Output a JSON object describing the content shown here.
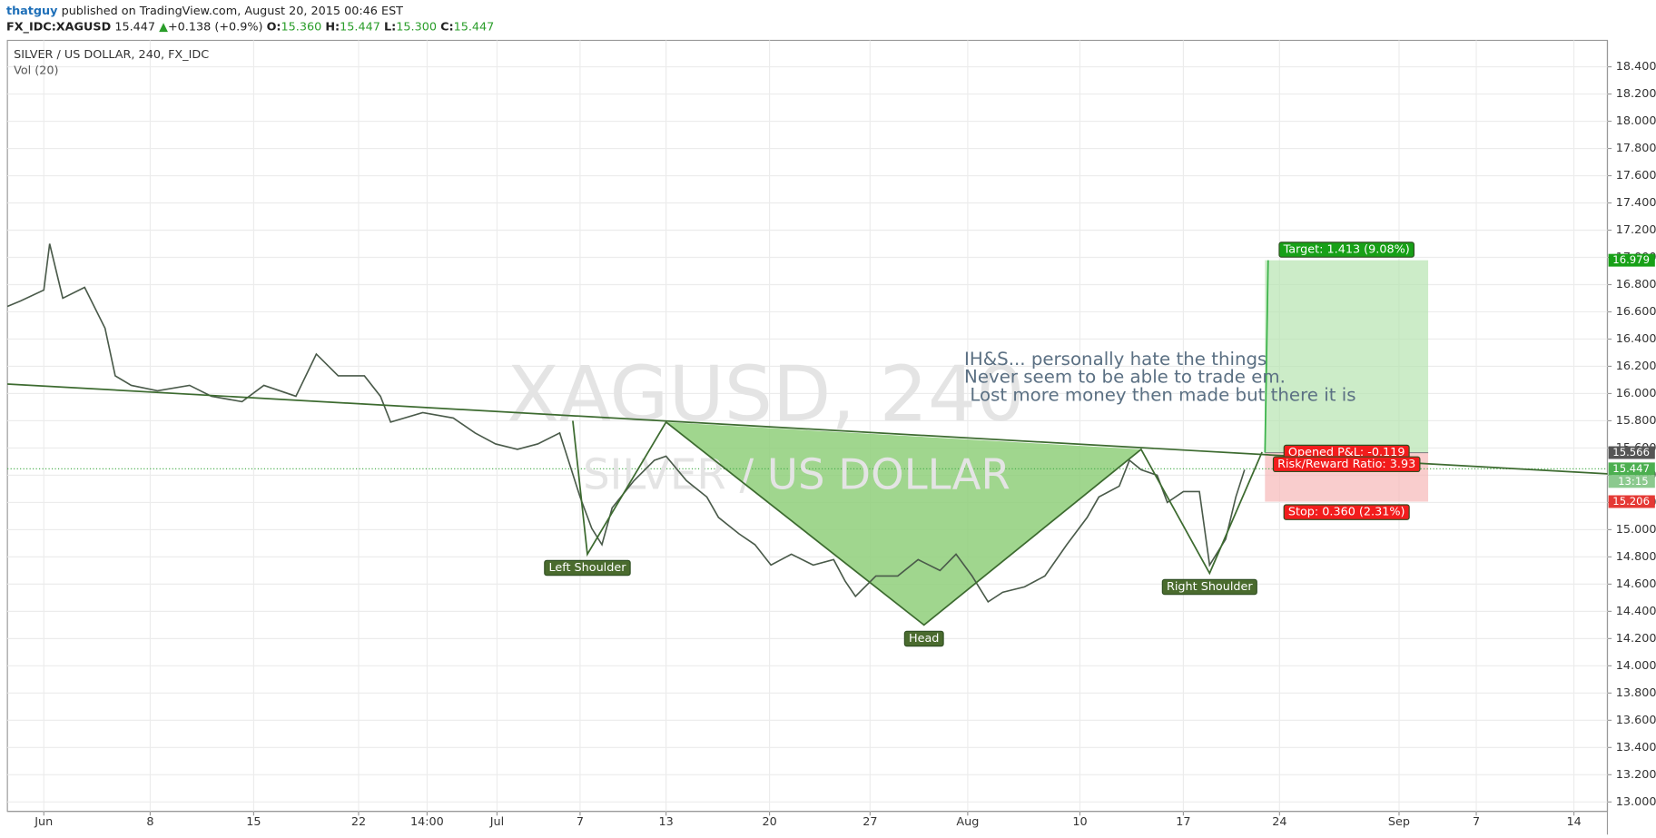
{
  "header": {
    "user": "thatguy",
    "published": "published on TradingView.com, August 20, 2015 00:46 EST",
    "symbol": "FX_IDC:XAGUSD",
    "close": 15.447,
    "change": "+0.138 (+0.9%)",
    "o_label": "O:",
    "open": "15.360",
    "h_label": "H:",
    "high": "15.447",
    "l_label": "L:",
    "low": "15.300",
    "c_label": "C:",
    "c_value": "15.447"
  },
  "chart_data": {
    "type": "line",
    "title": "SILVER / US DOLLAR, 240, FX_IDC",
    "subtitle": "Vol (20)",
    "watermark": [
      "XAGUSD, 240",
      "SILVER / US DOLLAR"
    ],
    "xlim": [
      -2.5,
      107.3
    ],
    "ylim": [
      12.931,
      18.594
    ],
    "xticks": [
      {
        "value": 0,
        "label": "Jun"
      },
      {
        "value": 7.3,
        "label": "8"
      },
      {
        "value": 14.4,
        "label": "15"
      },
      {
        "value": 21.6,
        "label": "22"
      },
      {
        "value": 26.3,
        "label": "14:00"
      },
      {
        "value": 31.1,
        "label": "Jul"
      },
      {
        "value": 36.8,
        "label": "7"
      },
      {
        "value": 42.7,
        "label": "13"
      },
      {
        "value": 49.8,
        "label": "20"
      },
      {
        "value": 56.7,
        "label": "27"
      },
      {
        "value": 63.4,
        "label": "Aug"
      },
      {
        "value": 71.1,
        "label": "10"
      },
      {
        "value": 78.2,
        "label": "17"
      },
      {
        "value": 84.8,
        "label": "24"
      },
      {
        "value": 93.0,
        "label": "Sep"
      },
      {
        "value": 98.3,
        "label": "7"
      },
      {
        "value": 105,
        "label": "14"
      }
    ],
    "yticks": [
      {
        "value": 13.0,
        "label": "13.000"
      },
      {
        "value": 13.2,
        "label": "13.200"
      },
      {
        "value": 13.4,
        "label": "13.400"
      },
      {
        "value": 13.6,
        "label": "13.600"
      },
      {
        "value": 13.8,
        "label": "13.800"
      },
      {
        "value": 14.0,
        "label": "14.000"
      },
      {
        "value": 14.2,
        "label": "14.200"
      },
      {
        "value": 14.4,
        "label": "14.400"
      },
      {
        "value": 14.6,
        "label": "14.600"
      },
      {
        "value": 14.8,
        "label": "14.800"
      },
      {
        "value": 15.0,
        "label": "15.000"
      },
      {
        "value": 15.2,
        "label": "15.200"
      },
      {
        "value": 15.4,
        "label": "15.400"
      },
      {
        "value": 15.6,
        "label": "15.600"
      },
      {
        "value": 15.8,
        "label": "15.800"
      },
      {
        "value": 16.0,
        "label": "16.000"
      },
      {
        "value": 16.2,
        "label": "16.200"
      },
      {
        "value": 16.4,
        "label": "16.400"
      },
      {
        "value": 16.6,
        "label": "16.600"
      },
      {
        "value": 16.8,
        "label": "16.800"
      },
      {
        "value": 17.0,
        "label": "17.000"
      },
      {
        "value": 17.2,
        "label": "17.200"
      },
      {
        "value": 17.4,
        "label": "17.400"
      },
      {
        "value": 17.6,
        "label": "17.600"
      },
      {
        "value": 17.8,
        "label": "17.800"
      },
      {
        "value": 18.0,
        "label": "18.000"
      },
      {
        "value": 18.2,
        "label": "18.200"
      },
      {
        "value": 18.4,
        "label": "18.400"
      }
    ],
    "grid": true,
    "x": [
      -2.5,
      -1.6,
      0,
      0.4,
      1.3,
      2.8,
      4.2,
      4.9,
      6.0,
      7.8,
      10.0,
      11.5,
      13.6,
      15.1,
      17.3,
      18.7,
      20.2,
      22.0,
      23.1,
      23.8,
      26.0,
      28.1,
      29.6,
      31.0,
      32.5,
      33.9,
      35.4,
      36.8,
      37.6,
      38.3,
      39.0,
      40.5,
      41.9,
      42.7,
      44.1,
      45.5,
      46.3,
      47.7,
      48.8,
      49.9,
      51.3,
      52.8,
      54.2,
      55.0,
      55.7,
      57.1,
      58.6,
      60.0,
      61.5,
      62.6,
      63.7,
      64.8,
      65.8,
      67.3,
      68.7,
      70.2,
      71.6,
      72.4,
      73.8,
      74.5,
      75.3,
      76.4,
      77.1,
      78.2,
      79.3,
      80.0,
      81.1,
      81.8,
      82.4
    ],
    "series": [
      {
        "name": "XAGUSD",
        "color": "#4a5a4a",
        "values": [
          16.64,
          16.68,
          16.76,
          17.1,
          16.7,
          16.78,
          16.48,
          16.13,
          16.06,
          16.02,
          16.06,
          15.98,
          15.94,
          16.06,
          15.98,
          16.29,
          16.13,
          16.13,
          15.98,
          15.79,
          15.86,
          15.82,
          15.71,
          15.63,
          15.59,
          15.63,
          15.71,
          15.24,
          15.01,
          14.89,
          15.16,
          15.36,
          15.51,
          15.54,
          15.36,
          15.24,
          15.09,
          14.97,
          14.89,
          14.74,
          14.82,
          14.74,
          14.78,
          14.62,
          14.51,
          14.66,
          14.66,
          14.78,
          14.7,
          14.82,
          14.66,
          14.47,
          14.54,
          14.58,
          14.66,
          14.89,
          15.09,
          15.24,
          15.32,
          15.51,
          15.44,
          15.4,
          15.2,
          15.28,
          15.28,
          14.74,
          14.93,
          15.24,
          15.44
        ]
      }
    ],
    "neckline": {
      "x": [
        -2.5,
        107.3
      ],
      "values": [
        16.07,
        15.41
      ],
      "color": "#3d6b30"
    },
    "pattern": {
      "x": [
        36.3,
        37.3,
        42.7,
        60.4,
        75.3,
        80.0,
        83.6
      ],
      "values": [
        15.8,
        14.82,
        15.79,
        14.3,
        15.59,
        14.68,
        15.57
      ],
      "color": "#3d6b30",
      "fill": "#8fcf7a"
    },
    "pattern_labels": [
      {
        "point": 1,
        "text": "Left Shoulder"
      },
      {
        "point": 3,
        "text": "Head"
      },
      {
        "point": 5,
        "text": "Right Shoulder"
      }
    ],
    "note": [
      "IH&S... personally hate the things",
      "Never seem to be able to trade em.",
      " Lost more money then made but there it is"
    ],
    "position": {
      "x_start": 83.8,
      "x_end": 95.0,
      "entry": 15.566,
      "target": 16.979,
      "stop": 15.206,
      "target_label": "Target: 1.413 (9.08%)",
      "pnl_label": "Opened P&L: -0.119",
      "rr_label": "Risk/Reward Ratio: 3.93",
      "stop_label": "Stop: 0.360 (2.31%)"
    },
    "last_time": "13:15"
  }
}
